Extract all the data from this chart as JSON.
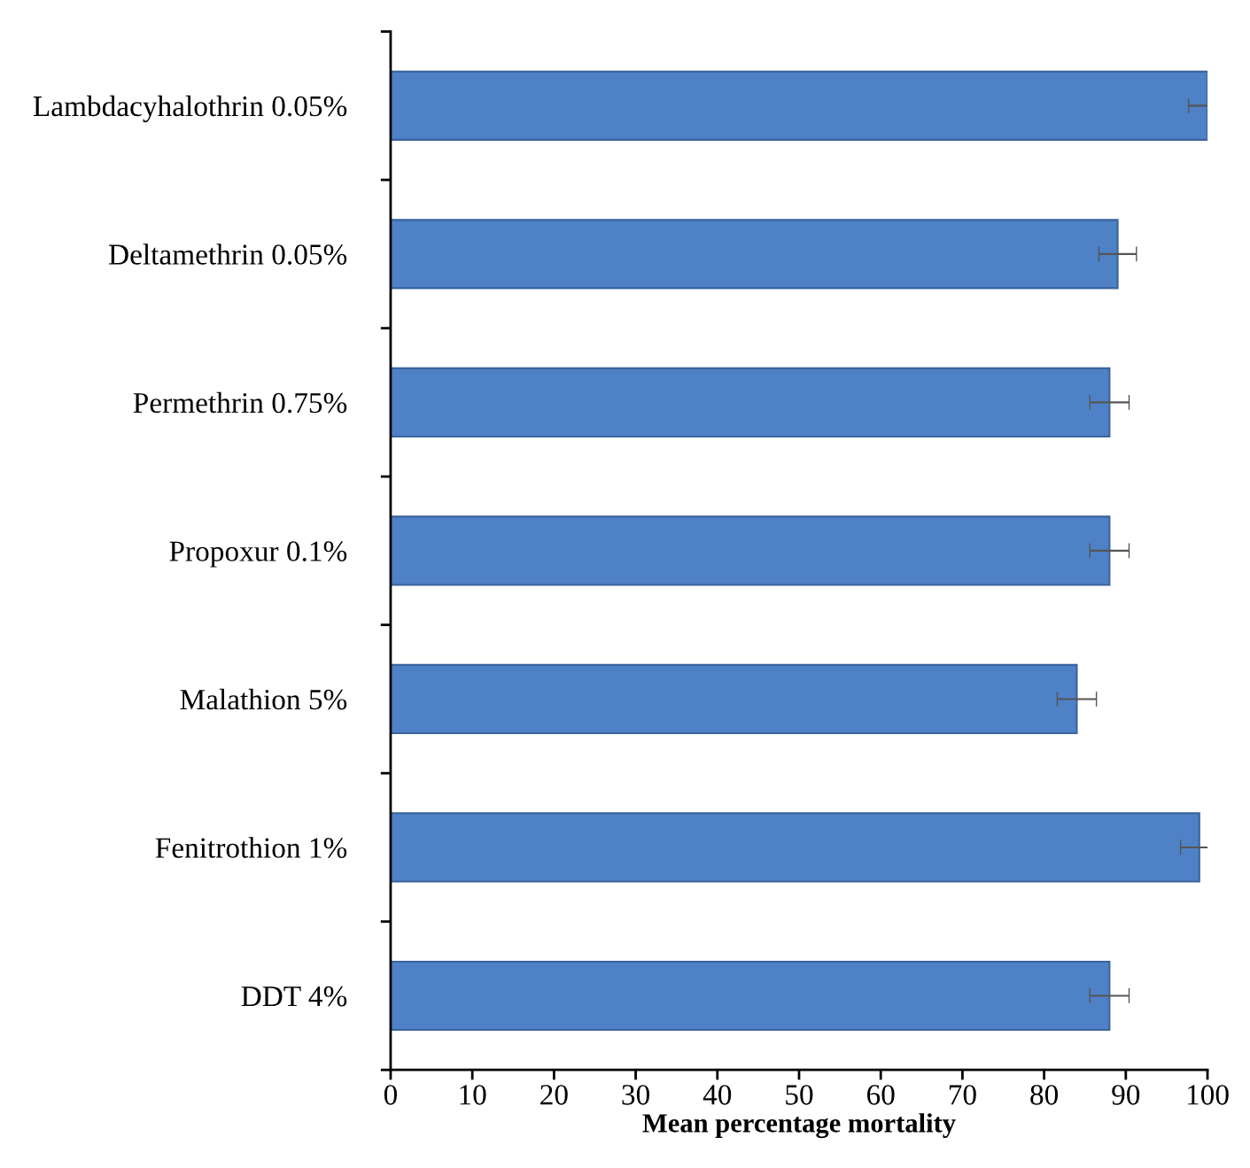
{
  "chart_data": {
    "type": "bar",
    "orientation": "horizontal",
    "xlabel": "Mean percentage mortality",
    "categories": [
      "Lambdacyhalothrin 0.05%",
      "Deltamethrin 0.05%",
      "Permethrin 0.75%",
      "Propoxur 0.1%",
      "Malathion 5%",
      "Fenitrothion 1%",
      "DDT 4%"
    ],
    "values": [
      100,
      89,
      88,
      88,
      84,
      99,
      88
    ],
    "errors": [
      2.3,
      2.3,
      2.4,
      2.4,
      2.4,
      2.3,
      2.4
    ],
    "color": "#4f81c7",
    "xlim": [
      0,
      100
    ],
    "xticks": [
      0,
      10,
      20,
      30,
      40,
      50,
      60,
      70,
      80,
      90,
      100
    ],
    "grid": false,
    "legend": false
  }
}
